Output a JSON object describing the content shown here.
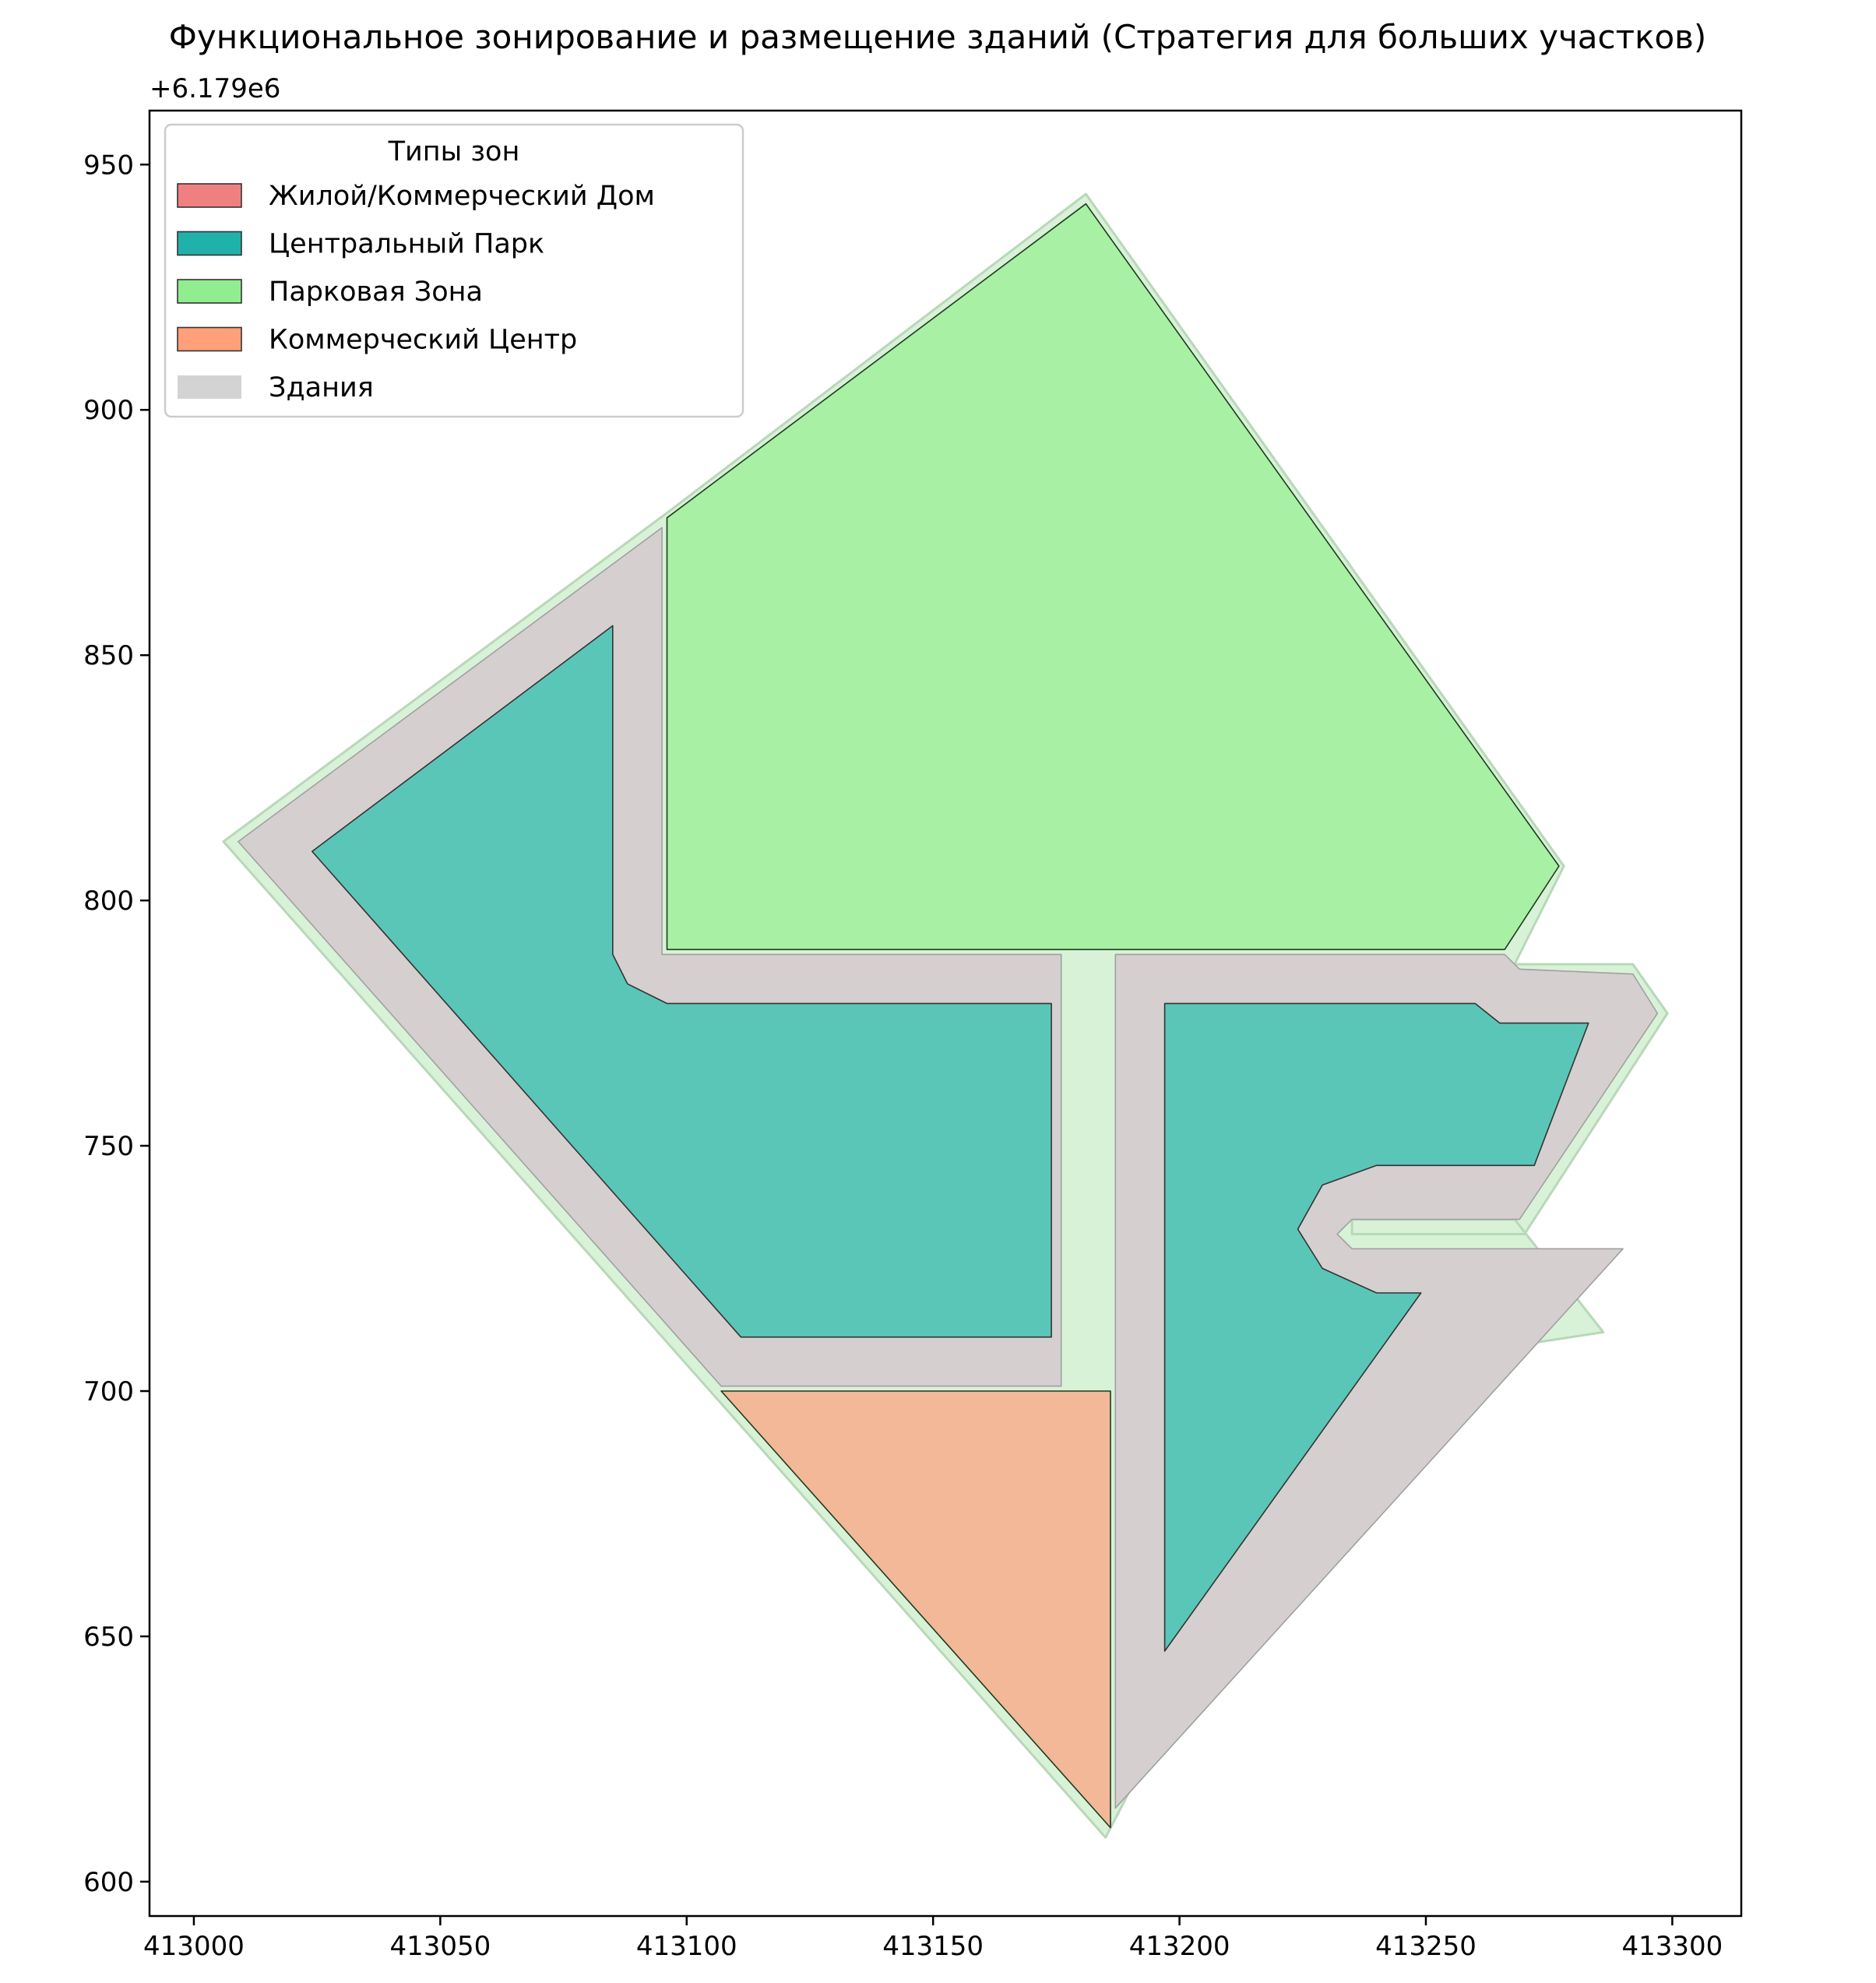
{
  "chart_data": {
    "type": "map",
    "title": "Функциональное зонирование и размещение зданий (Стратегия для больших участков)",
    "offset_label": "+6.179e6",
    "y_offset": 6179000,
    "xlim": [
      412991,
      413314
    ],
    "ylim": [
      593,
      961
    ],
    "x_ticks": [
      413000,
      413050,
      413100,
      413150,
      413200,
      413250,
      413300
    ],
    "x_tick_labels": [
      "413000",
      "413050",
      "413100",
      "413150",
      "413200",
      "413250",
      "413300"
    ],
    "y_ticks": [
      600,
      650,
      700,
      750,
      800,
      850,
      900,
      950
    ],
    "y_tick_labels": [
      "600",
      "650",
      "700",
      "750",
      "800",
      "850",
      "900",
      "950"
    ],
    "grid": false,
    "legend": {
      "title": "Типы зон",
      "placement": "top-left",
      "entries": [
        {
          "label": "Жилой/Коммерческий Дом",
          "color": "#f08080",
          "edge": "#333333"
        },
        {
          "label": "Центральный Парк",
          "color": "#20b2aa",
          "edge": "#333333"
        },
        {
          "label": "Парковая Зона",
          "color": "#90ee90",
          "edge": "#333333"
        },
        {
          "label": "Коммерческий Центр",
          "color": "#ffa07a",
          "edge": "#333333"
        },
        {
          "label": "Здания",
          "color": "#d3d3d3",
          "edge": "none"
        }
      ]
    },
    "layers": [
      {
        "name": "boundary",
        "fill": "#d8f2d8",
        "edge": "#b8d8b8",
        "opacity": 1,
        "polygon": [
          [
            413006,
            812
          ],
          [
            413096,
            879
          ],
          [
            413181,
            944
          ],
          [
            413278,
            807
          ],
          [
            413268,
            787
          ],
          [
            413292,
            787
          ],
          [
            413299,
            777
          ],
          [
            413270,
            732
          ],
          [
            413235,
            732
          ],
          [
            413235,
            735
          ],
          [
            413268,
            735
          ],
          [
            413286,
            712
          ],
          [
            413234,
            704
          ],
          [
            413185,
            609
          ],
          [
            413006,
            812
          ]
        ]
      },
      {
        "name": "buildings",
        "fill": "#d6cfcf",
        "edge": "#a0a0a0",
        "opacity": 1,
        "polygon": [
          [
            413009,
            812
          ],
          [
            413095,
            876
          ],
          [
            413095,
            789
          ],
          [
            413176,
            789
          ],
          [
            413176,
            701
          ],
          [
            413107,
            701
          ],
          [
            413009,
            812
          ]
        ]
      },
      {
        "name": "buildings",
        "fill": "#d6cfcf",
        "edge": "#a0a0a0",
        "opacity": 1,
        "polygon": [
          [
            413187,
            789
          ],
          [
            413266,
            789
          ],
          [
            413269,
            786
          ],
          [
            413292,
            785
          ],
          [
            413297,
            777
          ],
          [
            413269,
            735
          ],
          [
            413235,
            735
          ],
          [
            413232,
            732
          ],
          [
            413235,
            729
          ],
          [
            413290,
            729
          ],
          [
            413187,
            615
          ],
          [
            413187,
            789
          ]
        ]
      },
      {
        "name": "Центральный Парк",
        "fill": "#5ac6b8",
        "edge": "#333333",
        "polygon": [
          [
            413024,
            810
          ],
          [
            413085,
            856
          ],
          [
            413085,
            789
          ],
          [
            413088,
            783
          ],
          [
            413096,
            779
          ],
          [
            413174,
            779
          ],
          [
            413174,
            711
          ],
          [
            413111,
            711
          ],
          [
            413024,
            810
          ]
        ]
      },
      {
        "name": "Центральный Парк",
        "fill": "#5ac6b8",
        "edge": "#333333",
        "polygon": [
          [
            413197,
            779
          ],
          [
            413260,
            779
          ],
          [
            413265,
            775
          ],
          [
            413283,
            775
          ],
          [
            413272,
            746
          ],
          [
            413240,
            746
          ],
          [
            413229,
            742
          ],
          [
            413224,
            733
          ],
          [
            413229,
            725
          ],
          [
            413240,
            720
          ],
          [
            413249,
            720
          ],
          [
            413197,
            647
          ],
          [
            413197,
            779
          ]
        ]
      },
      {
        "name": "Парковая Зона",
        "fill": "#a8f0a4",
        "edge": "#1e3a1e",
        "polygon": [
          [
            413096,
            878
          ],
          [
            413181,
            942
          ],
          [
            413277,
            807
          ],
          [
            413266,
            790
          ],
          [
            413096,
            790
          ],
          [
            413096,
            878
          ]
        ]
      },
      {
        "name": "Коммерческий Центр",
        "fill": "#f2b898",
        "edge": "#1e3a1e",
        "polygon": [
          [
            413107,
            700
          ],
          [
            413186,
            700
          ],
          [
            413186,
            611
          ],
          [
            413107,
            700
          ]
        ]
      }
    ]
  }
}
